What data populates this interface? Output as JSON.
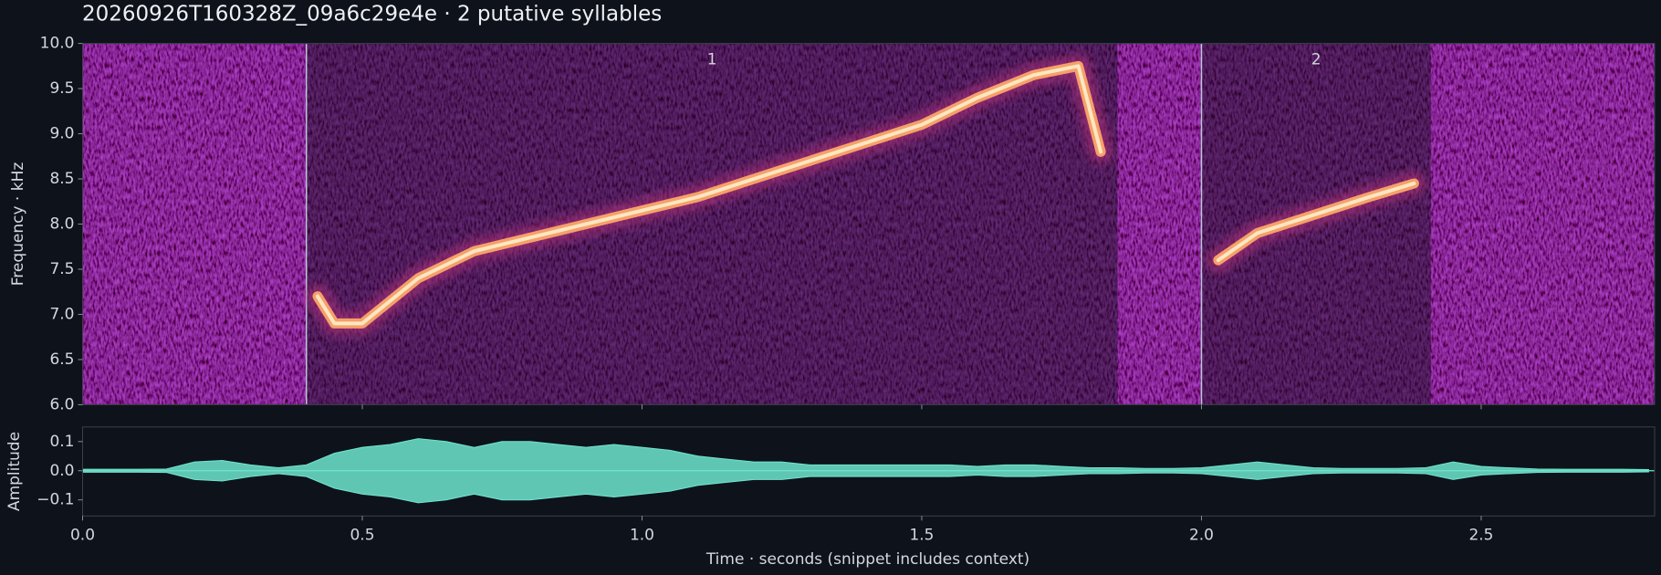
{
  "chart_data": [
    {
      "type": "spectrogram",
      "title": "20260926T160328Z_09a6c29e4e  ·  2 putative syllables",
      "ylabel": "Frequency · kHz",
      "xlim": [
        0,
        2.81
      ],
      "xticks": [
        0.5,
        1.0,
        1.5,
        2.0,
        2.5
      ],
      "ylim": [
        6,
        10
      ],
      "yticks": [
        {
          "value": 6,
          "label": "6.0"
        },
        {
          "value": 6.5,
          "label": "6.5"
        },
        {
          "value": 7,
          "label": "7.0"
        },
        {
          "value": 7.5,
          "label": "7.5"
        },
        {
          "value": 8,
          "label": "8.0"
        },
        {
          "value": 8.5,
          "label": "8.5"
        },
        {
          "value": 9,
          "label": "9.0"
        },
        {
          "value": 9.5,
          "label": "9.5"
        },
        {
          "value": 10,
          "label": "10.0"
        }
      ],
      "syllables": [
        {
          "label": "1",
          "onset": 0.4,
          "offset": 1.85
        },
        {
          "label": "2",
          "onset": 2.0,
          "offset": 2.41
        }
      ],
      "contours": [
        {
          "x": [
            0.42,
            0.45,
            0.5,
            0.6,
            0.7,
            0.8,
            0.9,
            1.0,
            1.1,
            1.2,
            1.3,
            1.4,
            1.5,
            1.6,
            1.7,
            1.78,
            1.82
          ],
          "values": [
            7.2,
            6.9,
            6.9,
            7.4,
            7.7,
            7.85,
            8.0,
            8.15,
            8.3,
            8.5,
            8.7,
            8.9,
            9.1,
            9.4,
            9.65,
            9.75,
            8.8
          ]
        },
        {
          "x": [
            2.03,
            2.1,
            2.2,
            2.3,
            2.38
          ],
          "values": [
            7.6,
            7.9,
            8.1,
            8.3,
            8.45
          ]
        }
      ],
      "color": "#f6a06a"
    },
    {
      "type": "waveform",
      "ylabel": "Amplitude",
      "xlabel": "Time · seconds (snippet includes context)",
      "xlim": [
        0,
        2.81
      ],
      "xticks": [
        {
          "value": 0,
          "label": "0.0"
        },
        {
          "value": 0.5,
          "label": "0.5"
        },
        {
          "value": 1.0,
          "label": "1.0"
        },
        {
          "value": 1.5,
          "label": "1.5"
        },
        {
          "value": 2.0,
          "label": "2.0"
        },
        {
          "value": 2.5,
          "label": "2.5"
        }
      ],
      "ylim": [
        -0.155,
        0.15
      ],
      "yticks": [
        {
          "value": 0.1,
          "label": "0.1"
        },
        {
          "value": 0,
          "label": "0.0"
        },
        {
          "value": -0.1,
          "label": "−0.1"
        }
      ],
      "x": [
        0,
        0.05,
        0.1,
        0.15,
        0.2,
        0.25,
        0.3,
        0.35,
        0.4,
        0.45,
        0.5,
        0.55,
        0.6,
        0.65,
        0.7,
        0.75,
        0.8,
        0.85,
        0.9,
        0.95,
        1.0,
        1.05,
        1.1,
        1.15,
        1.2,
        1.25,
        1.3,
        1.35,
        1.4,
        1.45,
        1.5,
        1.55,
        1.6,
        1.65,
        1.7,
        1.75,
        1.8,
        1.85,
        1.9,
        1.95,
        2.0,
        2.05,
        2.1,
        2.15,
        2.2,
        2.25,
        2.3,
        2.35,
        2.4,
        2.45,
        2.5,
        2.55,
        2.6,
        2.65,
        2.7,
        2.75,
        2.8
      ],
      "values": [
        0.005,
        0.005,
        0.005,
        0.006,
        0.03,
        0.035,
        0.02,
        0.01,
        0.02,
        0.06,
        0.08,
        0.09,
        0.11,
        0.1,
        0.08,
        0.1,
        0.1,
        0.09,
        0.08,
        0.09,
        0.08,
        0.07,
        0.05,
        0.04,
        0.03,
        0.03,
        0.02,
        0.02,
        0.02,
        0.02,
        0.02,
        0.02,
        0.015,
        0.02,
        0.02,
        0.015,
        0.01,
        0.01,
        0.008,
        0.008,
        0.01,
        0.02,
        0.03,
        0.02,
        0.01,
        0.008,
        0.008,
        0.008,
        0.01,
        0.03,
        0.015,
        0.01,
        0.006,
        0.005,
        0.005,
        0.005,
        0.004
      ],
      "color": "#6fe6cf"
    }
  ]
}
